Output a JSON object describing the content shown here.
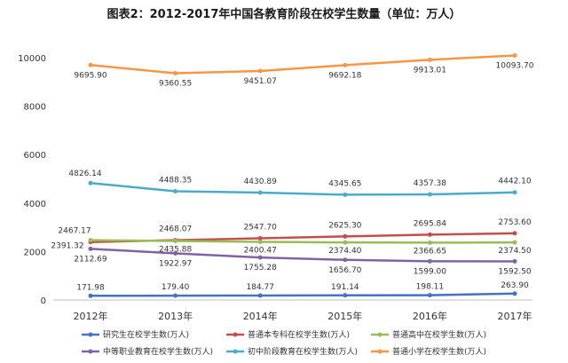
{
  "chart_data": {
    "type": "line",
    "title": "图表2：2012-2017年中国各教育阶段在校学生数量（单位：万人）",
    "categories": [
      "2012年",
      "2013年",
      "2014年",
      "2015年",
      "2016年",
      "2017年"
    ],
    "ylim": [
      0,
      10000
    ],
    "yticks": [
      "0",
      "2000",
      "4000",
      "6000",
      "8000",
      "10000"
    ],
    "grid": false,
    "legend_position": "bottom",
    "series": [
      {
        "name": "研究生在校学生数(万人)",
        "color": "#4472c4",
        "values": [
          171.98,
          179.4,
          184.77,
          191.14,
          198.11,
          263.9
        ],
        "labels": [
          "171.98",
          "179.40",
          "184.77",
          "191.14",
          "198.11",
          "263.90"
        ]
      },
      {
        "name": "普通本专科在校学生数(万人)",
        "color": "#c0504d",
        "values": [
          2391.32,
          2468.07,
          2547.7,
          2625.3,
          2695.84,
          2753.6
        ],
        "labels": [
          "2391.32",
          "2468.07",
          "2547.70",
          "2625.30",
          "2695.84",
          "2753.60"
        ]
      },
      {
        "name": "普通高中在校学生数(万人)",
        "color": "#9bbb59",
        "values": [
          2467.17,
          2435.88,
          2400.47,
          2374.4,
          2366.65,
          2374.5
        ],
        "labels": [
          "2467.17",
          "2435.88",
          "2400.47",
          "2374.40",
          "2366.65",
          "2374.50"
        ]
      },
      {
        "name": "中等职业教育在校学生数(万人)",
        "color": "#8064a2",
        "values": [
          2112.69,
          1922.97,
          1755.28,
          1656.7,
          1599.0,
          1592.5
        ],
        "labels": [
          "2112.69",
          "1922.97",
          "1755.28",
          "1656.70",
          "1599.00",
          "1592.50"
        ]
      },
      {
        "name": "初中阶段教育在校学生数(万人)",
        "color": "#4bacc6",
        "values": [
          4826.14,
          4488.35,
          4430.89,
          4345.65,
          4357.38,
          4442.1
        ],
        "labels": [
          "4826.14",
          "4488.35",
          "4430.89",
          "4345.65",
          "4357.38",
          "4442.10"
        ]
      },
      {
        "name": "普通小学在校学生数(万人)",
        "color": "#f79646",
        "values": [
          9695.9,
          9360.55,
          9451.07,
          9692.18,
          9913.01,
          10093.7
        ],
        "labels": [
          "9695.90",
          "9360.55",
          "9451.07",
          "9692.18",
          "9913.01",
          "10093.70"
        ]
      }
    ]
  }
}
